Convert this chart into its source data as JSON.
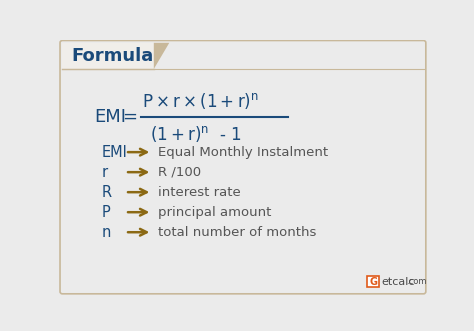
{
  "bg_color": "#ebebeb",
  "header_bg": "#f0eeea",
  "header_text": "Formula",
  "header_text_color": "#1a4a7a",
  "formula_color": "#1a4a7a",
  "arrow_color": "#8b6914",
  "desc_color": "#555555",
  "border_color": "#c8b89a",
  "diag_color": "#c8b89a",
  "variables": [
    "EMI",
    "r",
    "R",
    "P",
    "n"
  ],
  "descriptions": [
    "Equal Monthly Instalment",
    "R /100",
    "interest rate",
    "principal amount",
    "total number of months"
  ],
  "logo_orange": "#e05a1a",
  "logo_dark": "#4a4a4a",
  "figw": 4.74,
  "figh": 3.31,
  "dpi": 100
}
